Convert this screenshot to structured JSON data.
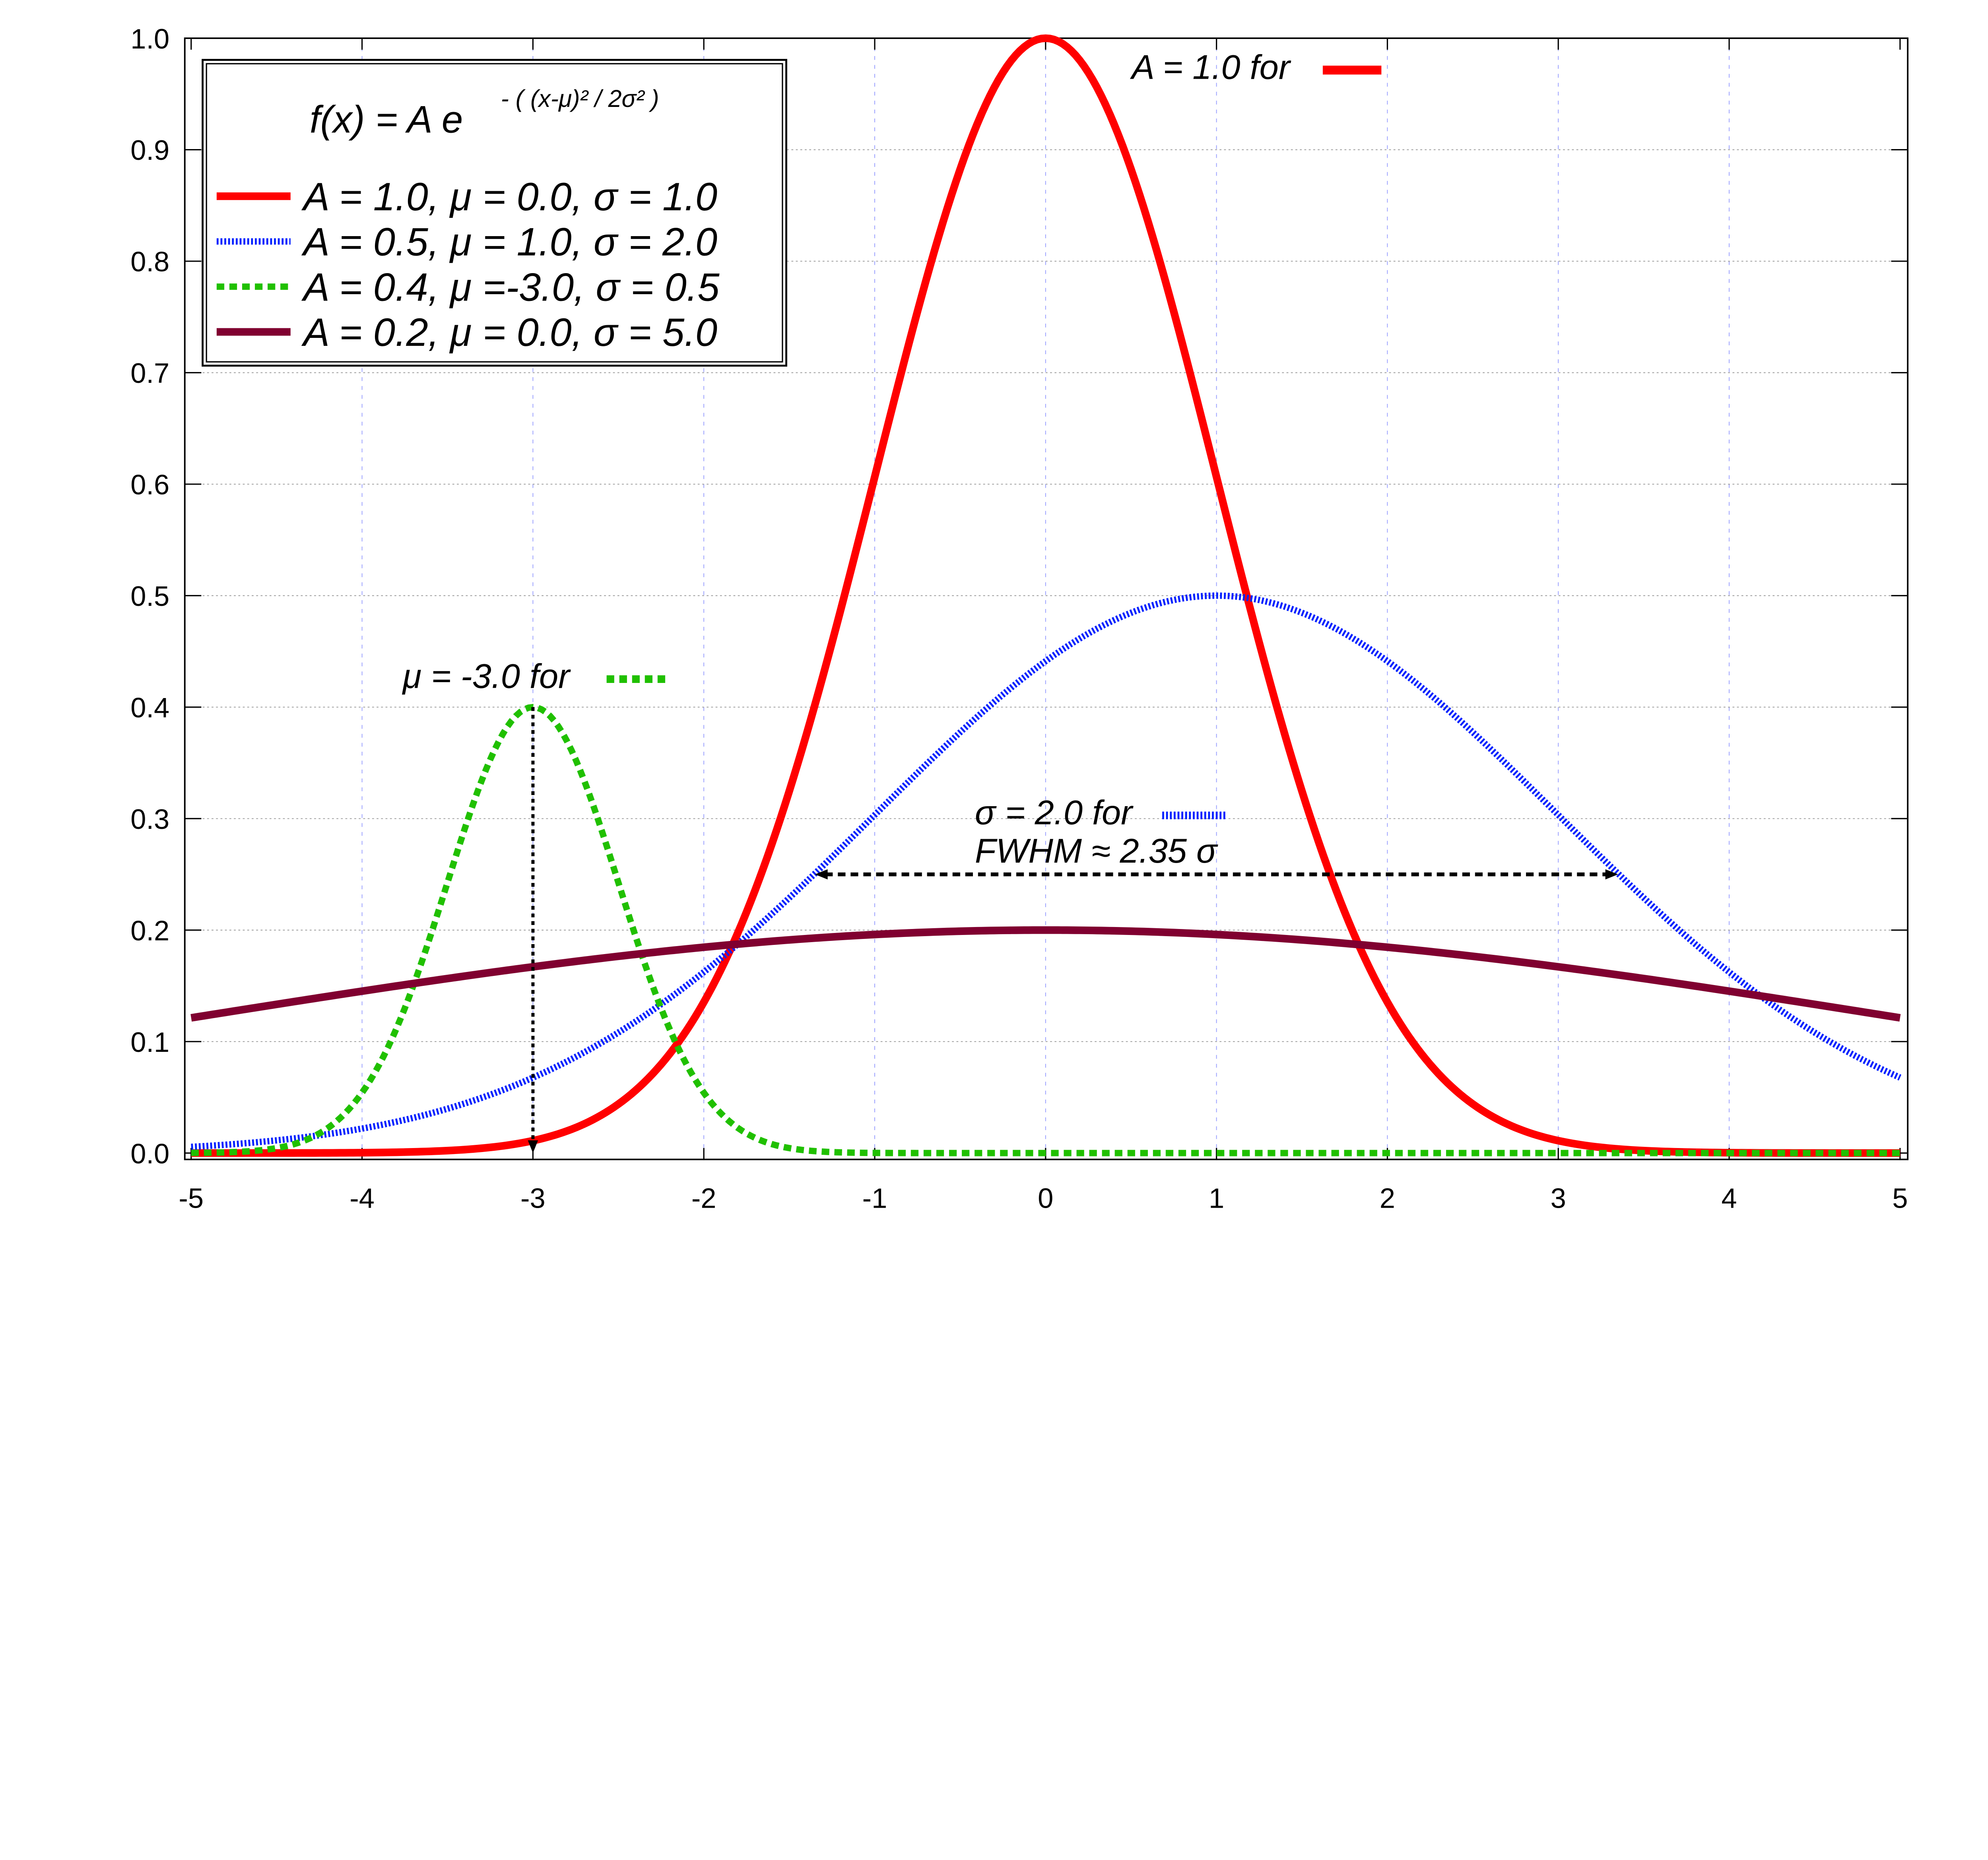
{
  "chart_data": {
    "type": "line",
    "title": "",
    "xlabel": "",
    "ylabel": "",
    "xlim": [
      -5,
      5
    ],
    "ylim": [
      0,
      1.0
    ],
    "grid": true,
    "legend_placement": "top-left",
    "x_ticks": [
      "-5",
      "-4",
      "-3",
      "-2",
      "-1",
      "0",
      "1",
      "2",
      "3",
      "4",
      "5"
    ],
    "y_ticks": [
      "0.0",
      "0.1",
      "0.2",
      "0.3",
      "0.4",
      "0.5",
      "0.6",
      "0.7",
      "0.8",
      "0.9",
      "1.0"
    ],
    "formula": {
      "lhs": "f(x) = A e",
      "exponent": "- ( (x-μ)² / 2σ² )"
    },
    "series": [
      {
        "name": "A = 1.0, μ = 0.0, σ = 1.0",
        "A": 1.0,
        "mu": 0.0,
        "sigma": 1.0,
        "color": "#ff0000",
        "style": "solid"
      },
      {
        "name": "A = 0.5, μ = 1.0, σ = 2.0",
        "A": 0.5,
        "mu": 1.0,
        "sigma": 2.0,
        "color": "#0020ff",
        "style": "dotted"
      },
      {
        "name": "A = 0.4, μ =-3.0, σ = 0.5",
        "A": 0.4,
        "mu": -3.0,
        "sigma": 0.5,
        "color": "#20c000",
        "style": "dashed"
      },
      {
        "name": "A = 0.2, μ = 0.0, σ = 5.0",
        "A": 0.2,
        "mu": 0.0,
        "sigma": 5.0,
        "color": "#800030",
        "style": "solid"
      }
    ],
    "annotations": {
      "amplitude": {
        "text": "A = 1.0 for"
      },
      "mean": {
        "text": "μ = -3.0 for",
        "arrow_x": -3.0,
        "arrow_from_y": 0.4,
        "arrow_to_y": 0.0
      },
      "sigma": {
        "text": "σ = 2.0 for",
        "text2": "FWHM ≈ 2.35 σ",
        "arrow_y": 0.25,
        "arrow_x_from": -1.35,
        "arrow_x_to": 3.35
      }
    }
  }
}
